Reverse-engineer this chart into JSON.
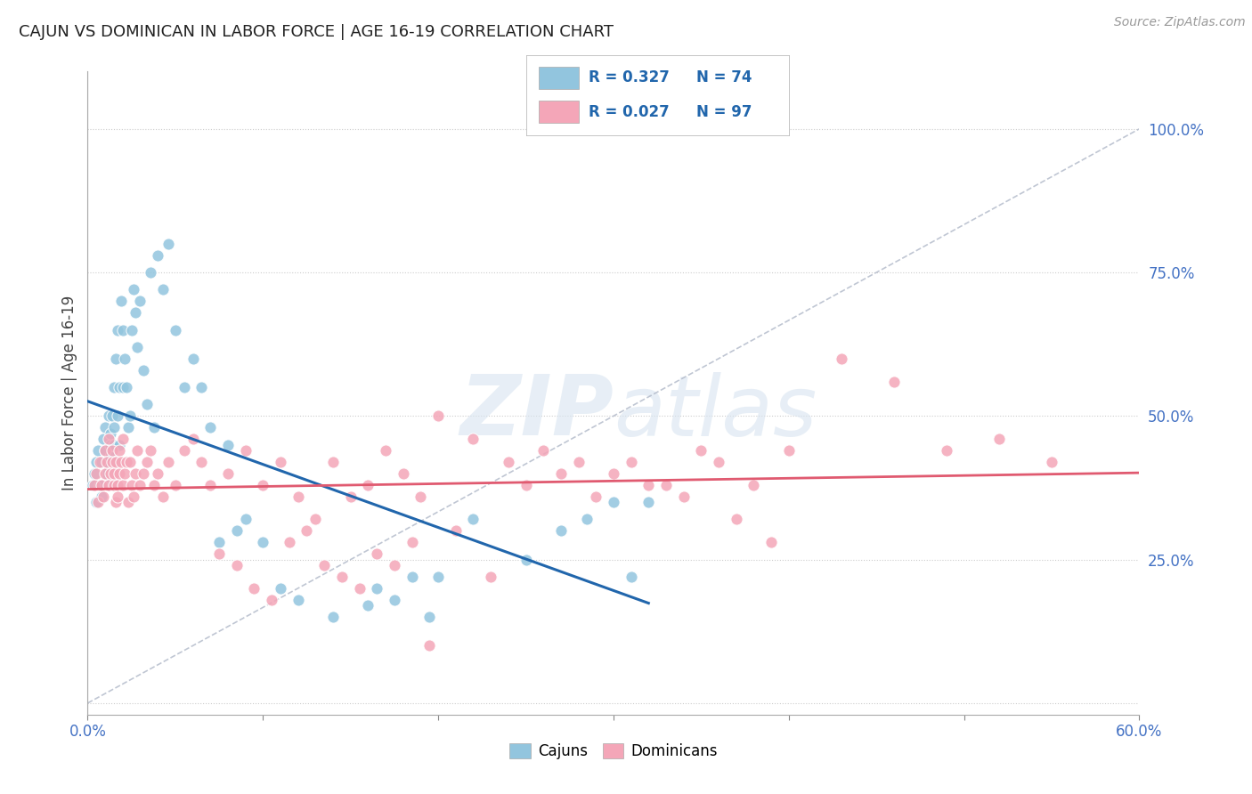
{
  "title": "CAJUN VS DOMINICAN IN LABOR FORCE | AGE 16-19 CORRELATION CHART",
  "source": "Source: ZipAtlas.com",
  "ylabel": "In Labor Force | Age 16-19",
  "xlim": [
    0.0,
    0.6
  ],
  "ylim": [
    -0.02,
    1.1
  ],
  "cajun_R": 0.327,
  "cajun_N": 74,
  "dominican_R": 0.027,
  "dominican_N": 97,
  "cajun_color": "#92c5de",
  "dominican_color": "#f4a6b8",
  "cajun_line_color": "#2166ac",
  "dominican_line_color": "#e05a70",
  "diagonal_color": "#b0b8c8",
  "watermark_color": "#d8e4f0",
  "cajun_x": [
    0.003,
    0.004,
    0.005,
    0.005,
    0.006,
    0.007,
    0.008,
    0.008,
    0.009,
    0.01,
    0.01,
    0.011,
    0.011,
    0.012,
    0.012,
    0.013,
    0.013,
    0.013,
    0.014,
    0.014,
    0.015,
    0.015,
    0.015,
    0.016,
    0.016,
    0.017,
    0.017,
    0.018,
    0.018,
    0.019,
    0.02,
    0.02,
    0.021,
    0.022,
    0.023,
    0.024,
    0.025,
    0.026,
    0.027,
    0.028,
    0.03,
    0.032,
    0.034,
    0.036,
    0.038,
    0.04,
    0.043,
    0.046,
    0.05,
    0.055,
    0.06,
    0.065,
    0.07,
    0.08,
    0.09,
    0.1,
    0.11,
    0.12,
    0.14,
    0.16,
    0.2,
    0.22,
    0.25,
    0.27,
    0.285,
    0.3,
    0.31,
    0.32,
    0.165,
    0.175,
    0.185,
    0.195,
    0.075,
    0.085
  ],
  "cajun_y": [
    0.38,
    0.4,
    0.35,
    0.42,
    0.44,
    0.38,
    0.36,
    0.42,
    0.46,
    0.48,
    0.44,
    0.4,
    0.42,
    0.5,
    0.38,
    0.45,
    0.43,
    0.47,
    0.38,
    0.5,
    0.55,
    0.45,
    0.48,
    0.42,
    0.6,
    0.65,
    0.5,
    0.55,
    0.45,
    0.7,
    0.55,
    0.65,
    0.6,
    0.55,
    0.48,
    0.5,
    0.65,
    0.72,
    0.68,
    0.62,
    0.7,
    0.58,
    0.52,
    0.75,
    0.48,
    0.78,
    0.72,
    0.8,
    0.65,
    0.55,
    0.6,
    0.55,
    0.48,
    0.45,
    0.32,
    0.28,
    0.2,
    0.18,
    0.15,
    0.17,
    0.22,
    0.32,
    0.25,
    0.3,
    0.32,
    0.35,
    0.22,
    0.35,
    0.2,
    0.18,
    0.22,
    0.15,
    0.28,
    0.3
  ],
  "dominican_x": [
    0.004,
    0.005,
    0.006,
    0.007,
    0.008,
    0.009,
    0.01,
    0.01,
    0.011,
    0.012,
    0.012,
    0.013,
    0.014,
    0.014,
    0.015,
    0.015,
    0.016,
    0.016,
    0.017,
    0.017,
    0.018,
    0.018,
    0.019,
    0.02,
    0.02,
    0.021,
    0.022,
    0.023,
    0.024,
    0.025,
    0.026,
    0.027,
    0.028,
    0.03,
    0.032,
    0.034,
    0.036,
    0.038,
    0.04,
    0.043,
    0.046,
    0.05,
    0.055,
    0.06,
    0.065,
    0.07,
    0.08,
    0.09,
    0.1,
    0.11,
    0.12,
    0.13,
    0.14,
    0.15,
    0.16,
    0.17,
    0.18,
    0.19,
    0.2,
    0.22,
    0.24,
    0.26,
    0.28,
    0.3,
    0.32,
    0.34,
    0.36,
    0.38,
    0.4,
    0.43,
    0.46,
    0.49,
    0.52,
    0.55,
    0.25,
    0.27,
    0.29,
    0.31,
    0.33,
    0.35,
    0.37,
    0.39,
    0.21,
    0.23,
    0.075,
    0.085,
    0.095,
    0.105,
    0.115,
    0.125,
    0.135,
    0.145,
    0.155,
    0.165,
    0.175,
    0.185,
    0.195
  ],
  "dominican_y": [
    0.38,
    0.4,
    0.35,
    0.42,
    0.38,
    0.36,
    0.4,
    0.44,
    0.42,
    0.46,
    0.38,
    0.4,
    0.42,
    0.44,
    0.38,
    0.4,
    0.35,
    0.42,
    0.38,
    0.36,
    0.4,
    0.44,
    0.42,
    0.46,
    0.38,
    0.4,
    0.42,
    0.35,
    0.42,
    0.38,
    0.36,
    0.4,
    0.44,
    0.38,
    0.4,
    0.42,
    0.44,
    0.38,
    0.4,
    0.36,
    0.42,
    0.38,
    0.44,
    0.46,
    0.42,
    0.38,
    0.4,
    0.44,
    0.38,
    0.42,
    0.36,
    0.32,
    0.42,
    0.36,
    0.38,
    0.44,
    0.4,
    0.36,
    0.5,
    0.46,
    0.42,
    0.44,
    0.42,
    0.4,
    0.38,
    0.36,
    0.42,
    0.38,
    0.44,
    0.6,
    0.56,
    0.44,
    0.46,
    0.42,
    0.38,
    0.4,
    0.36,
    0.42,
    0.38,
    0.44,
    0.32,
    0.28,
    0.3,
    0.22,
    0.26,
    0.24,
    0.2,
    0.18,
    0.28,
    0.3,
    0.24,
    0.22,
    0.2,
    0.26,
    0.24,
    0.28,
    0.1
  ]
}
